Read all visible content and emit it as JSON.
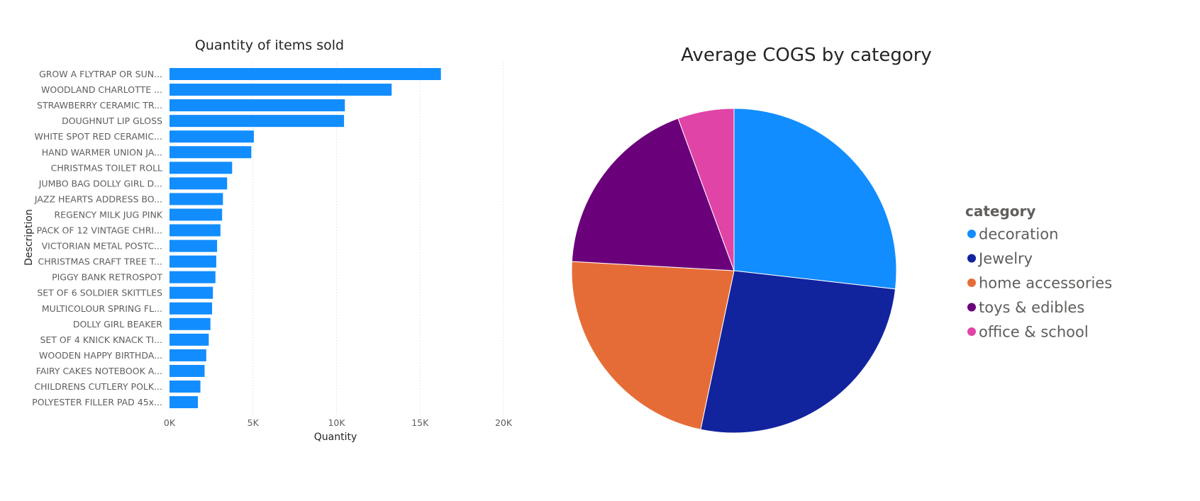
{
  "chart_data": [
    {
      "type": "bar",
      "orientation": "horizontal",
      "title": "Quantity of items sold",
      "xlabel": "Quantity",
      "ylabel": "Description",
      "xlim": [
        0,
        20000
      ],
      "xticks": [
        0,
        5000,
        10000,
        15000,
        20000
      ],
      "xtick_labels": [
        "0K",
        "5K",
        "10K",
        "15K",
        "20K"
      ],
      "grid": true,
      "color": "#118DFF",
      "categories": [
        "GROW A FLYTRAP OR SUN...",
        "WOODLAND CHARLOTTE ...",
        "STRAWBERRY CERAMIC TR...",
        "DOUGHNUT LIP GLOSS",
        "WHITE SPOT RED CERAMIC...",
        "HAND WARMER UNION JA...",
        "CHRISTMAS TOILET ROLL",
        "JUMBO BAG DOLLY GIRL D...",
        "JAZZ HEARTS ADDRESS BO...",
        "REGENCY MILK JUG PINK",
        "PACK OF 12 VINTAGE CHRI...",
        "VICTORIAN METAL POSTC...",
        "CHRISTMAS CRAFT TREE T...",
        "PIGGY BANK RETROSPOT",
        "SET OF 6 SOLDIER SKITTLES",
        "MULTICOLOUR SPRING FL...",
        "DOLLY GIRL BEAKER",
        "SET OF 4 KNICK KNACK TI...",
        "WOODEN HAPPY BIRTHDA...",
        "FAIRY CAKES NOTEBOOK A...",
        "CHILDRENS CUTLERY POLK...",
        "POLYESTER FILLER PAD 45x..."
      ],
      "values": [
        16250,
        13300,
        10500,
        10450,
        5050,
        4900,
        3750,
        3450,
        3200,
        3150,
        3050,
        2850,
        2800,
        2750,
        2600,
        2550,
        2450,
        2350,
        2200,
        2100,
        1850,
        1700
      ]
    },
    {
      "type": "pie",
      "title": "Average COGS by category",
      "legend_title": "category",
      "legend_position": "right",
      "labels": [
        "decoration",
        "Jewelry",
        "home accessories",
        "toys & edibles",
        "office & school"
      ],
      "values": [
        26.8,
        26.5,
        22.6,
        18.5,
        5.6
      ],
      "colors": [
        "#118DFF",
        "#12239E",
        "#E66C37",
        "#6B007B",
        "#E044A7"
      ]
    }
  ]
}
